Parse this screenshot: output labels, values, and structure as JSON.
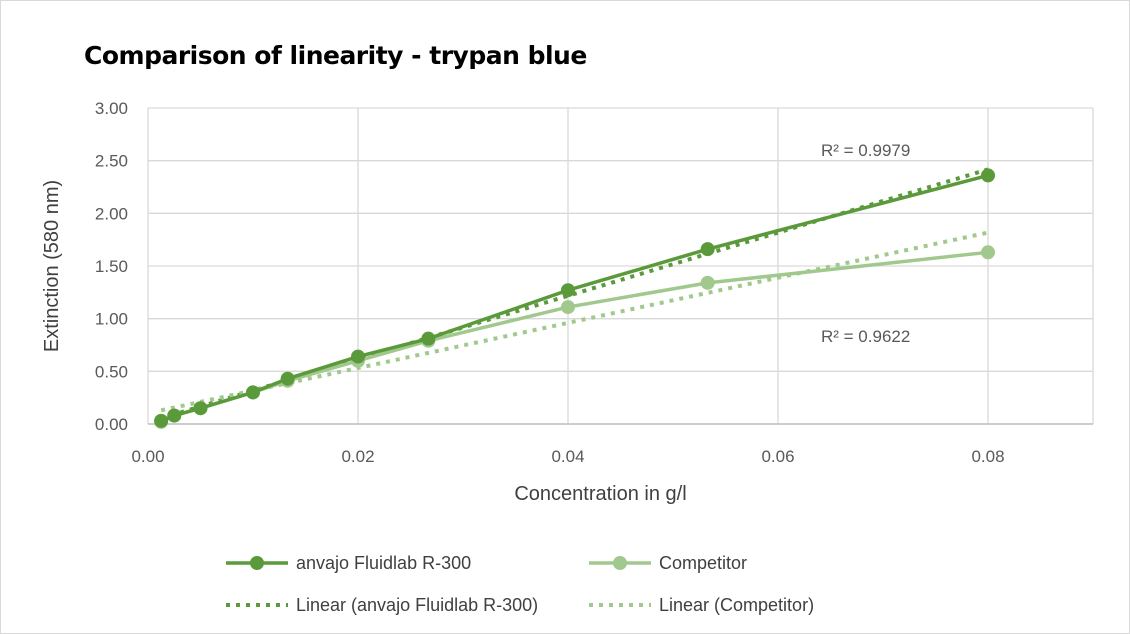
{
  "chart_data": {
    "type": "line",
    "title": "Comparison of linearity -  trypan blue",
    "xlabel": "Concentration in g/l",
    "ylabel": "Extinction (580 nm)",
    "xlim": [
      0,
      0.09
    ],
    "ylim": [
      0,
      3
    ],
    "xticks": [
      "0.00",
      "0.02",
      "0.04",
      "0.06",
      "0.08"
    ],
    "yticks": [
      "0.00",
      "0.50",
      "1.00",
      "1.50",
      "2.00",
      "2.50",
      "3.00"
    ],
    "grid": true,
    "legend_position": "bottom",
    "x": [
      0.00125,
      0.0025,
      0.005,
      0.01,
      0.0133,
      0.02,
      0.0267,
      0.04,
      0.0533,
      0.08
    ],
    "series": [
      {
        "name": "anvajo Fluidlab R-300",
        "color": "#5b9a3a",
        "values": [
          0.03,
          0.08,
          0.15,
          0.3,
          0.43,
          0.64,
          0.81,
          1.27,
          1.66,
          2.36
        ]
      },
      {
        "name": "Competitor",
        "color": "#a1c98e",
        "values": [
          0.02,
          0.08,
          0.15,
          0.3,
          0.41,
          0.6,
          0.79,
          1.11,
          1.34,
          1.63
        ]
      }
    ],
    "trendlines": [
      {
        "name": "Linear (anvajo Fluidlab R-300)",
        "series": 0,
        "r2_label": "R² = 0.9979"
      },
      {
        "name": "Linear (Competitor)",
        "series": 1,
        "r2_label": "R² = 0.9622"
      }
    ]
  }
}
